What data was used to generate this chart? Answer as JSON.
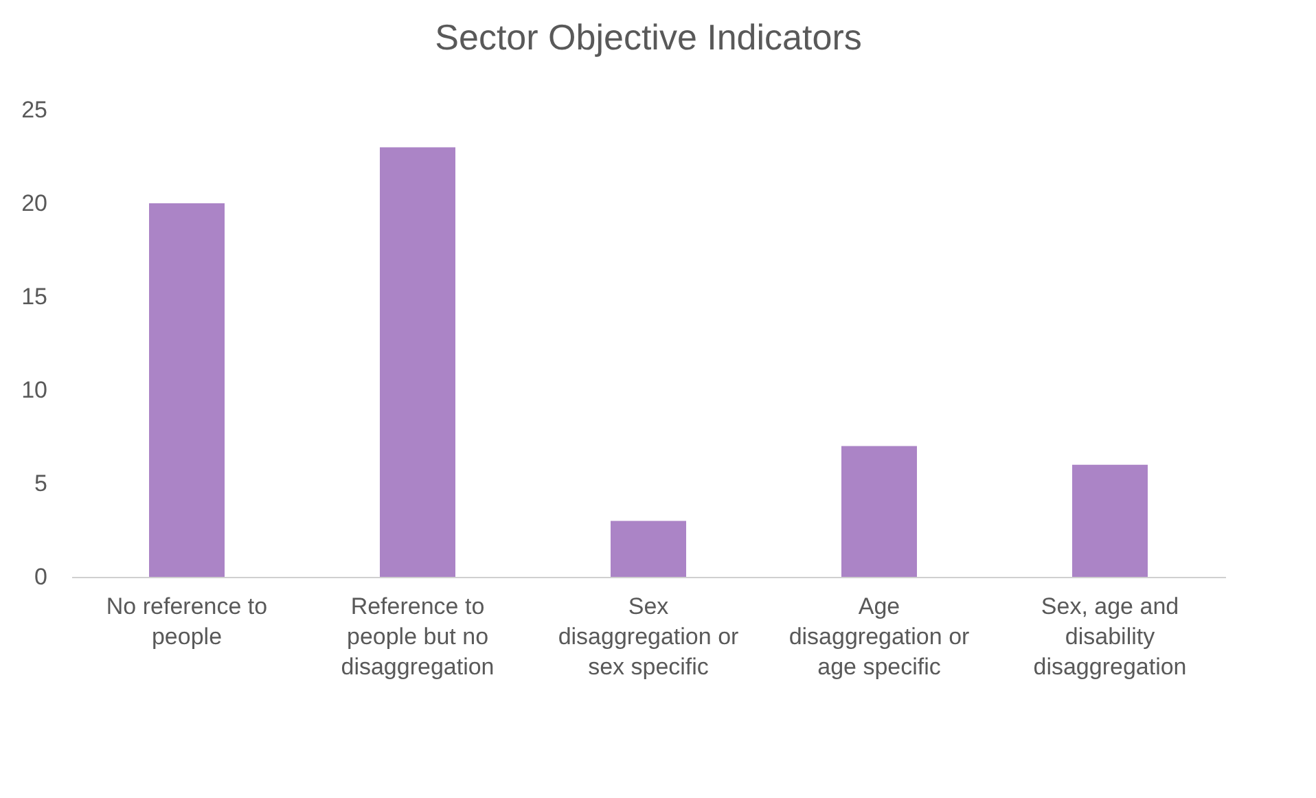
{
  "chart_data": {
    "type": "bar",
    "title": "Sector Objective Indicators",
    "categories": [
      "No reference to people",
      "Reference to people but no disaggregation",
      "Sex disaggregation or sex specific",
      "Age disaggregation or age specific",
      "Sex, age and disability disaggregation"
    ],
    "values": [
      20,
      23,
      3,
      7,
      6
    ],
    "color": "#ab84c6",
    "ylim": [
      0,
      25
    ],
    "yticks": [
      0,
      5,
      10,
      15,
      20,
      25
    ],
    "grid": false
  }
}
